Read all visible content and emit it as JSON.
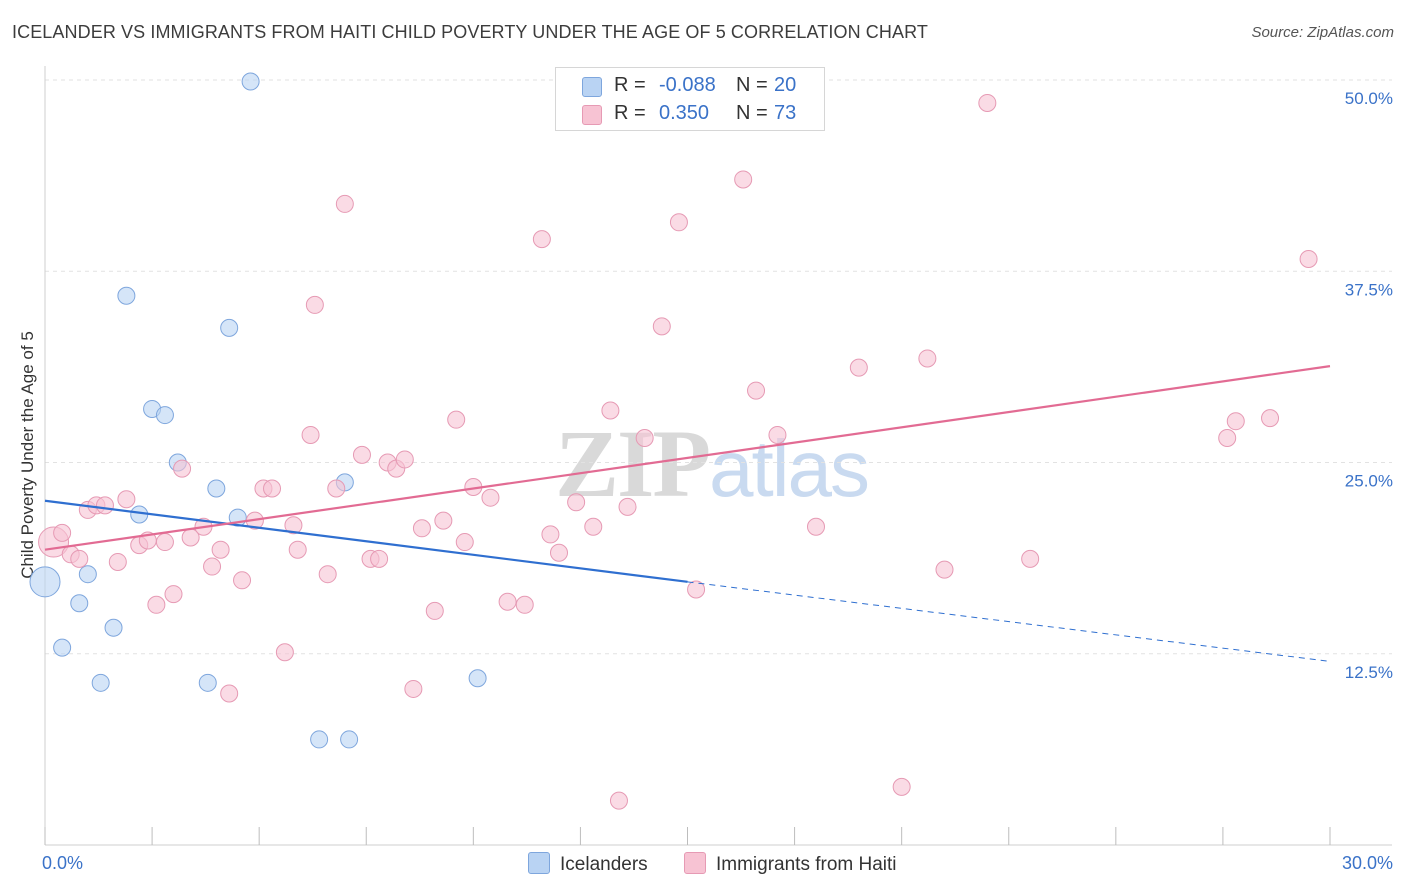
{
  "title": "ICELANDER VS IMMIGRANTS FROM HAITI CHILD POVERTY UNDER THE AGE OF 5 CORRELATION CHART",
  "source": "Source: ZipAtlas.com",
  "watermark": {
    "part1": "ZIP",
    "part2": "atlas"
  },
  "legend": {
    "rows": [
      {
        "r_label": "R =",
        "r_value": "-0.088",
        "n_label": "N =",
        "n_value": "20",
        "color": "#b9d3f3",
        "border": "#7ea6dd"
      },
      {
        "r_label": "R =",
        "r_value": "0.350",
        "n_label": "N =",
        "n_value": "73",
        "color": "#f7c3d3",
        "border": "#e69ab4"
      }
    ]
  },
  "bottom_legend": {
    "series1": "Icelanders",
    "series2": "Immigrants from Haiti"
  },
  "chart_data": {
    "type": "scatter",
    "title": "ICELANDER VS IMMIGRANTS FROM HAITI CHILD POVERTY UNDER THE AGE OF 5 CORRELATION CHART",
    "xlabel": "",
    "ylabel": "Child Poverty Under the Age of 5",
    "xlim": [
      0,
      30
    ],
    "ylim": [
      0,
      50
    ],
    "x_tick_labels": [
      "0.0%",
      "30.0%"
    ],
    "y_ticks": [
      12.5,
      25.0,
      37.5,
      50.0
    ],
    "y_tick_labels": [
      "12.5%",
      "25.0%",
      "37.5%",
      "50.0%"
    ],
    "grid": true,
    "series": [
      {
        "name": "Icelanders",
        "color": "#b9d3f3",
        "edge": "#7ea6dd",
        "line_color": "#2f6fd0",
        "trend": {
          "x0": 0,
          "y0": 22.5,
          "x1": 15,
          "y1": 17.2,
          "dash_to_x": 30,
          "dash_to_y": 12.0
        },
        "points": [
          [
            0,
            17.2,
            3
          ],
          [
            0.4,
            12.9,
            1
          ],
          [
            0.8,
            15.8,
            1
          ],
          [
            1.0,
            17.7,
            1
          ],
          [
            1.3,
            10.6,
            1
          ],
          [
            1.6,
            14.2,
            1
          ],
          [
            1.9,
            35.9,
            1
          ],
          [
            2.2,
            21.6,
            1
          ],
          [
            2.5,
            28.5,
            1
          ],
          [
            2.8,
            28.1,
            1
          ],
          [
            3.1,
            25.0,
            1
          ],
          [
            3.8,
            10.6,
            1
          ],
          [
            4.0,
            23.3,
            1
          ],
          [
            4.3,
            33.8,
            1
          ],
          [
            4.5,
            21.4,
            1
          ],
          [
            4.8,
            49.9,
            1
          ],
          [
            6.4,
            6.9,
            1
          ],
          [
            7.0,
            23.7,
            1
          ],
          [
            7.1,
            6.9,
            1
          ],
          [
            10.1,
            10.9,
            1
          ]
        ]
      },
      {
        "name": "Immigrants from Haiti",
        "color": "#f7c3d3",
        "edge": "#e69ab4",
        "line_color": "#e26b93",
        "trend": {
          "x0": 0,
          "y0": 19.3,
          "x1": 30,
          "y1": 31.3
        },
        "points": [
          [
            0.2,
            19.8,
            2
          ],
          [
            0.4,
            20.4,
            1
          ],
          [
            0.6,
            19.0,
            1
          ],
          [
            0.8,
            18.7,
            1
          ],
          [
            1.0,
            21.9,
            1
          ],
          [
            1.2,
            22.2,
            1
          ],
          [
            1.4,
            22.2,
            1
          ],
          [
            1.7,
            18.5,
            1
          ],
          [
            1.9,
            22.6,
            1
          ],
          [
            2.2,
            19.6,
            1
          ],
          [
            2.4,
            19.9,
            1
          ],
          [
            2.6,
            15.7,
            1
          ],
          [
            2.8,
            19.8,
            1
          ],
          [
            3.0,
            16.4,
            1
          ],
          [
            3.2,
            24.6,
            1
          ],
          [
            3.4,
            20.1,
            1
          ],
          [
            3.7,
            20.8,
            1
          ],
          [
            3.9,
            18.2,
            1
          ],
          [
            4.1,
            19.3,
            1
          ],
          [
            4.3,
            9.9,
            1
          ],
          [
            4.6,
            17.3,
            1
          ],
          [
            4.9,
            21.2,
            1
          ],
          [
            5.1,
            23.3,
            1
          ],
          [
            5.3,
            23.3,
            1
          ],
          [
            5.6,
            12.6,
            1
          ],
          [
            5.8,
            20.9,
            1
          ],
          [
            5.9,
            19.3,
            1
          ],
          [
            6.2,
            26.8,
            1
          ],
          [
            6.3,
            35.3,
            1
          ],
          [
            6.6,
            17.7,
            1
          ],
          [
            6.8,
            23.3,
            1
          ],
          [
            7.0,
            41.9,
            1
          ],
          [
            7.4,
            25.5,
            1
          ],
          [
            7.6,
            18.7,
            1
          ],
          [
            7.8,
            18.7,
            1
          ],
          [
            8.0,
            25.0,
            1
          ],
          [
            8.2,
            24.6,
            1
          ],
          [
            8.4,
            25.2,
            1
          ],
          [
            8.6,
            10.2,
            1
          ],
          [
            8.8,
            20.7,
            1
          ],
          [
            9.1,
            15.3,
            1
          ],
          [
            9.3,
            21.2,
            1
          ],
          [
            9.6,
            27.8,
            1
          ],
          [
            9.8,
            19.8,
            1
          ],
          [
            10.0,
            23.4,
            1
          ],
          [
            10.4,
            22.7,
            1
          ],
          [
            10.8,
            15.9,
            1
          ],
          [
            11.2,
            15.7,
            1
          ],
          [
            11.6,
            39.6,
            1
          ],
          [
            11.8,
            20.3,
            1
          ],
          [
            12.0,
            19.1,
            1
          ],
          [
            12.4,
            22.4,
            1
          ],
          [
            12.8,
            20.8,
            1
          ],
          [
            13.2,
            28.4,
            1
          ],
          [
            13.4,
            2.9,
            1
          ],
          [
            13.6,
            22.1,
            1
          ],
          [
            14.0,
            26.6,
            1
          ],
          [
            14.4,
            33.9,
            1
          ],
          [
            14.8,
            40.7,
            1
          ],
          [
            15.2,
            16.7,
            1
          ],
          [
            16.3,
            43.5,
            1
          ],
          [
            16.6,
            29.7,
            1
          ],
          [
            17.1,
            26.8,
            1
          ],
          [
            18.0,
            20.8,
            1
          ],
          [
            19.0,
            31.2,
            1
          ],
          [
            20.0,
            3.8,
            1
          ],
          [
            20.6,
            31.8,
            1
          ],
          [
            21.0,
            18.0,
            1
          ],
          [
            22.0,
            48.5,
            1
          ],
          [
            23.0,
            18.7,
            1
          ],
          [
            27.6,
            26.6,
            1
          ],
          [
            27.8,
            27.7,
            1
          ],
          [
            28.6,
            27.9,
            1
          ],
          [
            29.5,
            38.3,
            1
          ]
        ]
      }
    ]
  }
}
